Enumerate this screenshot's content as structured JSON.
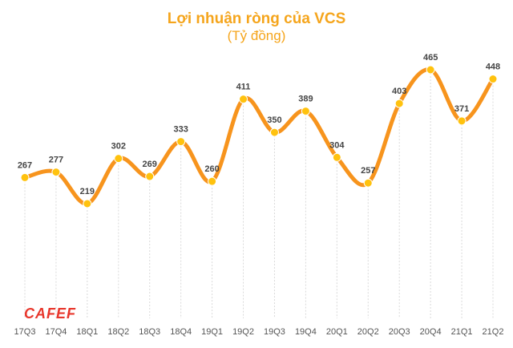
{
  "chart_data": {
    "type": "line",
    "title": "Lợi nhuận ròng của VCS",
    "subtitle": "(Tỷ đồng)",
    "categories": [
      "17Q3",
      "17Q4",
      "18Q1",
      "18Q2",
      "18Q3",
      "18Q4",
      "19Q1",
      "19Q2",
      "19Q3",
      "19Q4",
      "20Q1",
      "20Q2",
      "20Q3",
      "20Q4",
      "21Q1",
      "21Q2"
    ],
    "series": [
      {
        "values": [
          267,
          277,
          219,
          302,
          269,
          333,
          260,
          411,
          350,
          389,
          304,
          257,
          403,
          465,
          371,
          448
        ]
      }
    ],
    "data_labels": [
      "267",
      "277",
      "219",
      "302",
      "269",
      "333",
      "260",
      "411",
      "350",
      "389",
      "304",
      "257",
      "403",
      "465",
      "371",
      "448"
    ],
    "grid": "vertical-dashed",
    "line_color": "#f7941d",
    "marker_color": "#ffc20e",
    "xlabel": "",
    "ylabel": ""
  },
  "branding": {
    "logo_text": "CAFEF",
    "logo_color": "#e8372c"
  }
}
